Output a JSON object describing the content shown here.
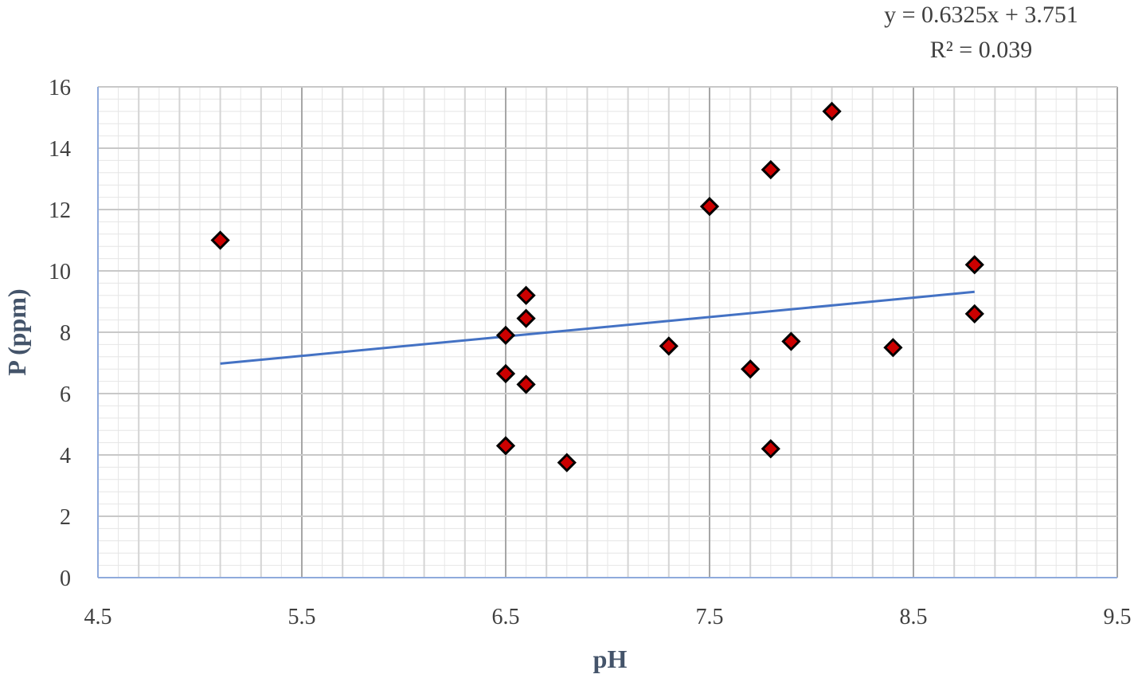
{
  "chart_data": {
    "type": "scatter",
    "xlabel": "pH",
    "ylabel": "P (ppm)",
    "xlim": [
      4.5,
      9.5
    ],
    "ylim": [
      0,
      16
    ],
    "x_ticks": [
      "4.5",
      "5.5",
      "6.5",
      "7.5",
      "8.5",
      "9.5"
    ],
    "y_ticks": [
      "0",
      "2",
      "4",
      "6",
      "8",
      "10",
      "12",
      "14",
      "16"
    ],
    "grid": true,
    "legend": "none",
    "marker": {
      "shape": "diamond",
      "fill": "#cc0000",
      "stroke": "#000000"
    },
    "trendline": {
      "type": "linear",
      "slope": 0.6325,
      "intercept": 3.751,
      "x_range": [
        5.1,
        8.8
      ],
      "color": "#4472c4",
      "equation": "y = 0.6325x + 3.751",
      "r_squared": "R² = 0.039"
    },
    "points": [
      {
        "x": 5.1,
        "y": 11.0
      },
      {
        "x": 6.5,
        "y": 7.9
      },
      {
        "x": 6.5,
        "y": 6.65
      },
      {
        "x": 6.5,
        "y": 4.3
      },
      {
        "x": 6.6,
        "y": 9.2
      },
      {
        "x": 6.6,
        "y": 8.45
      },
      {
        "x": 6.6,
        "y": 6.3
      },
      {
        "x": 6.8,
        "y": 3.75
      },
      {
        "x": 7.3,
        "y": 7.55
      },
      {
        "x": 7.5,
        "y": 12.1
      },
      {
        "x": 7.7,
        "y": 6.8
      },
      {
        "x": 7.8,
        "y": 13.3
      },
      {
        "x": 7.8,
        "y": 4.2
      },
      {
        "x": 7.9,
        "y": 7.7
      },
      {
        "x": 8.1,
        "y": 15.2
      },
      {
        "x": 8.4,
        "y": 7.5
      },
      {
        "x": 8.8,
        "y": 10.2
      },
      {
        "x": 8.8,
        "y": 8.6
      }
    ]
  }
}
